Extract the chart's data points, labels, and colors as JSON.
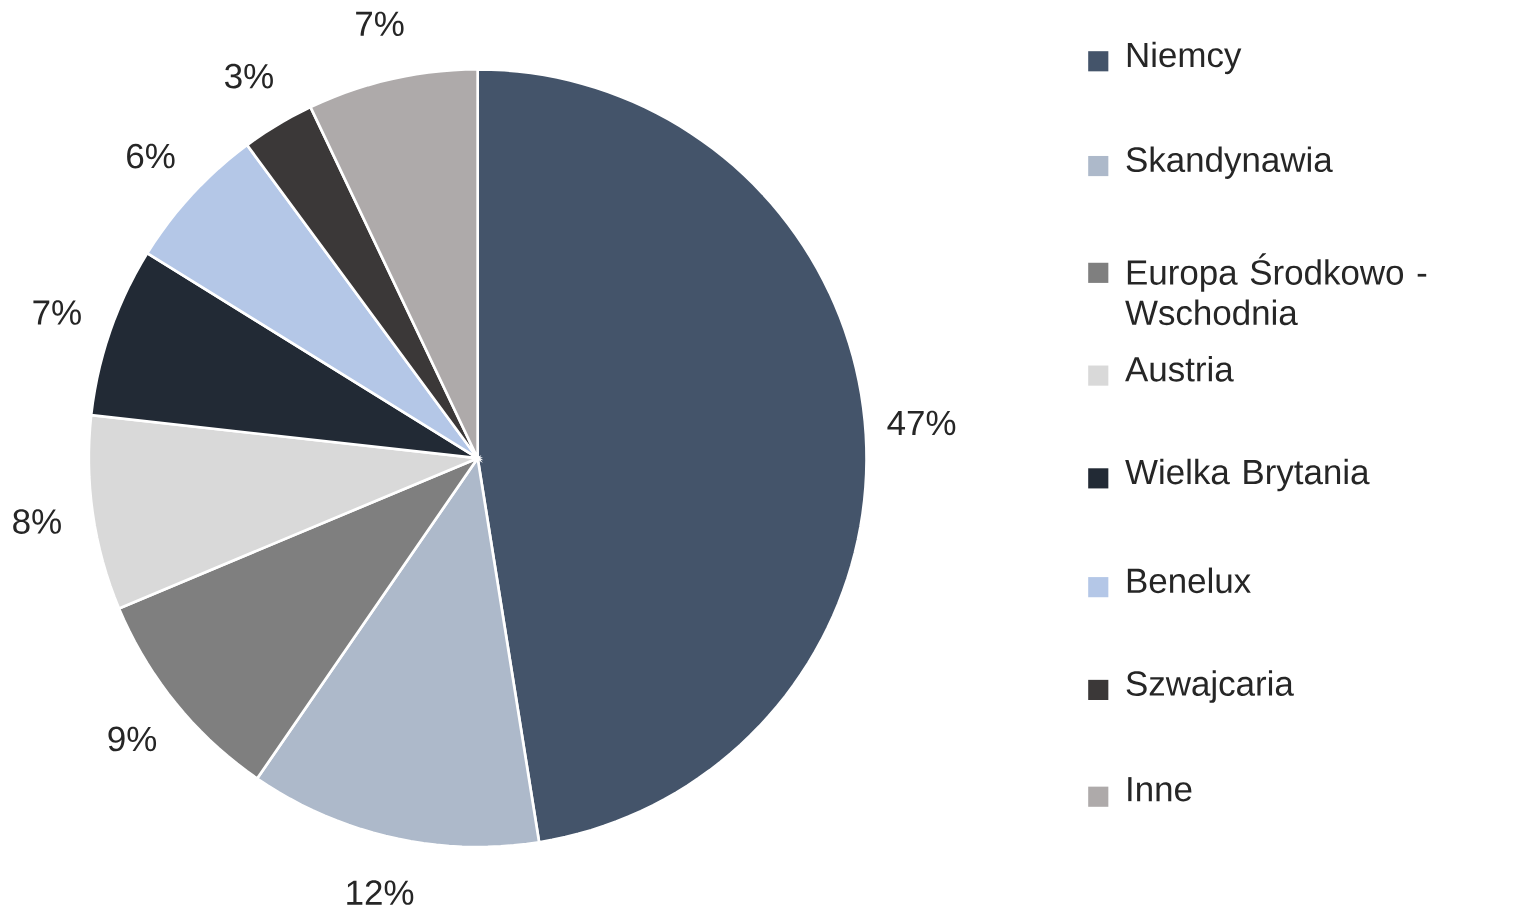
{
  "chart_data": {
    "type": "pie",
    "categories": [
      "Niemcy",
      "Skandynawia",
      "Europa Środkowo - Wschodnia",
      "Austria",
      "Wielka Brytania",
      "Benelux",
      "Szwajcaria",
      "Inne"
    ],
    "values": [
      47,
      12,
      9,
      8,
      7,
      6,
      3,
      7
    ],
    "value_labels": [
      "47%",
      "12%",
      "9%",
      "8%",
      "7%",
      "6%",
      "3%",
      "7%"
    ],
    "colors": [
      "#44546a",
      "#adb9ca",
      "#7f7f7f",
      "#d9d9d9",
      "#222a35",
      "#b4c7e7",
      "#3b3838",
      "#aeaaaa"
    ],
    "legend": "right"
  }
}
